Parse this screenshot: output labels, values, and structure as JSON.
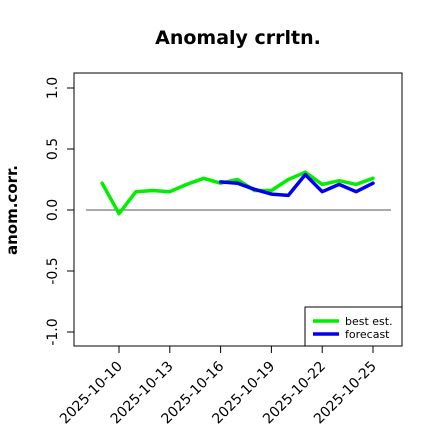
{
  "chart_data": {
    "type": "line",
    "title": "Anomaly crrltn.",
    "ylabel": "anom.corr.",
    "xlabel": "",
    "ylim": [
      -1.0,
      1.0
    ],
    "y_ticks": [
      "-1.0",
      "-0.5",
      "0.0",
      "0.5",
      "1.0"
    ],
    "x_ticks": [
      "2025-10-10",
      "2025-10-13",
      "2025-10-16",
      "2025-10-19",
      "2025-10-22",
      "2025-10-25"
    ],
    "highlight_tick": "2025-10-16",
    "highlight_color": "#2e8b2e",
    "reference_line": 0.0,
    "legend_position": "bottom-right",
    "x": [
      "2025-10-09",
      "2025-10-10",
      "2025-10-11",
      "2025-10-12",
      "2025-10-13",
      "2025-10-14",
      "2025-10-15",
      "2025-10-16",
      "2025-10-17",
      "2025-10-18",
      "2025-10-19",
      "2025-10-20",
      "2025-10-21",
      "2025-10-22",
      "2025-10-23",
      "2025-10-24",
      "2025-10-25"
    ],
    "series": [
      {
        "name": "best est.",
        "color": "#00ee00",
        "values": [
          0.22,
          -0.03,
          0.15,
          0.16,
          0.15,
          0.21,
          0.26,
          0.22,
          0.25,
          0.16,
          0.16,
          0.25,
          0.31,
          0.21,
          0.24,
          0.21,
          0.26
        ]
      },
      {
        "name": "forecast",
        "color": "#0000ee",
        "values": [
          null,
          null,
          null,
          null,
          null,
          null,
          null,
          0.23,
          0.22,
          0.17,
          0.13,
          0.12,
          0.29,
          0.15,
          0.21,
          0.15,
          0.22
        ]
      }
    ]
  }
}
